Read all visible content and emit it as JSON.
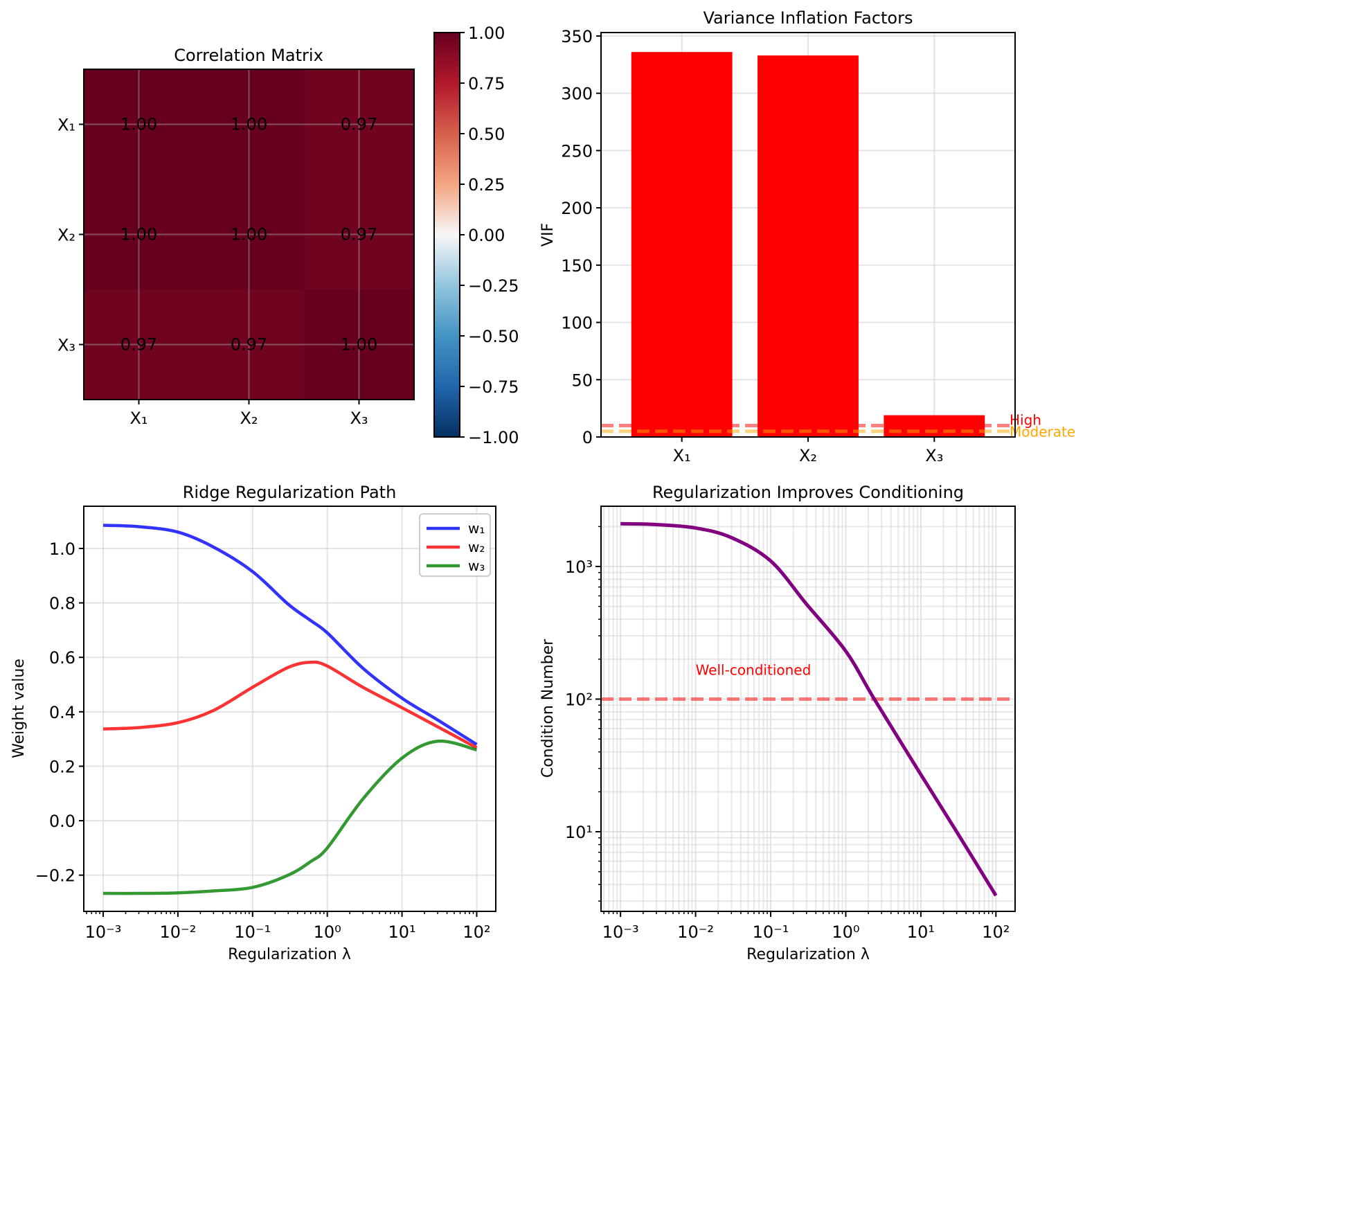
{
  "chart_data": [
    {
      "type": "heatmap",
      "title": "Correlation Matrix",
      "x_labels": [
        "X₁",
        "X₂",
        "X₃"
      ],
      "y_labels": [
        "X₁",
        "X₂",
        "X₃"
      ],
      "values": [
        [
          1.0,
          1.0,
          0.97
        ],
        [
          1.0,
          1.0,
          0.97
        ],
        [
          0.97,
          0.97,
          1.0
        ]
      ],
      "cell_labels": [
        [
          "1.00",
          "1.00",
          "0.97"
        ],
        [
          "1.00",
          "1.00",
          "0.97"
        ],
        [
          "0.97",
          "0.97",
          "1.00"
        ]
      ],
      "colormap": "RdBu_r",
      "colorbar": {
        "range": [
          -1.0,
          1.0
        ],
        "ticks": [
          "1.00",
          "0.75",
          "0.50",
          "0.25",
          "0.00",
          "−0.25",
          "−0.50",
          "−0.75",
          "−1.00"
        ],
        "tick_values": [
          1.0,
          0.75,
          0.5,
          0.25,
          0.0,
          -0.25,
          -0.5,
          -0.75,
          -1.0
        ]
      },
      "grid": true
    },
    {
      "type": "bar",
      "title": "Variance Inflation Factors",
      "categories": [
        "X₁",
        "X₂",
        "X₃"
      ],
      "values": [
        336,
        333,
        19
      ],
      "bar_color": "#ff0000",
      "xlabel": "",
      "ylabel": "VIF",
      "ylim": [
        0,
        353
      ],
      "yticks": [
        0,
        50,
        100,
        150,
        200,
        250,
        300,
        350
      ],
      "reference_lines": [
        {
          "value": 10,
          "label": "High",
          "color": "#ff0000"
        },
        {
          "value": 5,
          "label": "Moderate",
          "color": "#ffa500"
        }
      ],
      "grid": true
    },
    {
      "type": "line",
      "title": "Ridge Regularization Path",
      "xlabel": "Regularization λ",
      "ylabel": "Weight value",
      "xscale": "log",
      "xlim": [
        0.00055,
        180
      ],
      "ylim": [
        -0.333,
        1.155
      ],
      "xticks": [
        "10⁻³",
        "10⁻²",
        "10⁻¹",
        "10⁰",
        "10¹",
        "10²"
      ],
      "yticks": [
        -0.2,
        0.0,
        0.2,
        0.4,
        0.6,
        0.8,
        1.0
      ],
      "ytick_labels": [
        "−0.2",
        "0.0",
        "0.2",
        "0.4",
        "0.6",
        "0.8",
        "1.0"
      ],
      "x": [
        0.001,
        0.003,
        0.01,
        0.03,
        0.1,
        0.3,
        0.6,
        1,
        3,
        10,
        30,
        100
      ],
      "series": [
        {
          "name": "w₁",
          "color": "#0000ff",
          "values": [
            1.085,
            1.08,
            1.06,
            1.005,
            0.915,
            0.795,
            0.735,
            0.69,
            0.56,
            0.45,
            0.37,
            0.28
          ]
        },
        {
          "name": "w₂",
          "color": "#ff0000",
          "values": [
            0.337,
            0.342,
            0.36,
            0.405,
            0.49,
            0.563,
            0.582,
            0.568,
            0.49,
            0.415,
            0.345,
            0.268
          ]
        },
        {
          "name": "w₃",
          "color": "#008000",
          "values": [
            -0.267,
            -0.267,
            -0.265,
            -0.258,
            -0.245,
            -0.2,
            -0.15,
            -0.1,
            0.08,
            0.23,
            0.292,
            0.26
          ]
        }
      ],
      "legend": "top-right",
      "grid": true
    },
    {
      "type": "line",
      "title": "Regularization Improves Conditioning",
      "xlabel": "Regularization λ",
      "ylabel": "Condition Number",
      "xscale": "log",
      "yscale": "log",
      "xlim": [
        0.00055,
        180
      ],
      "ylim": [
        2.51,
        2845
      ],
      "xticks": [
        "10⁻³",
        "10⁻²",
        "10⁻¹",
        "10⁰",
        "10¹",
        "10²"
      ],
      "yticks": [
        "10¹",
        "10²",
        "10³"
      ],
      "x": [
        0.001,
        0.003,
        0.01,
        0.03,
        0.1,
        0.3,
        1,
        2.4,
        10,
        30,
        100
      ],
      "series": [
        {
          "name": "Condition Number",
          "color": "#800080",
          "values": [
            2100,
            2070,
            1950,
            1650,
            1100,
            520,
            230,
            100,
            27,
            10,
            3.3
          ]
        }
      ],
      "reference_lines": [
        {
          "value": 100,
          "color": "#ff0000"
        }
      ],
      "annotations": [
        {
          "text": "Well-conditioned",
          "x": 0.01,
          "y": 160,
          "color": "#ff0000"
        }
      ],
      "grid": true
    }
  ]
}
